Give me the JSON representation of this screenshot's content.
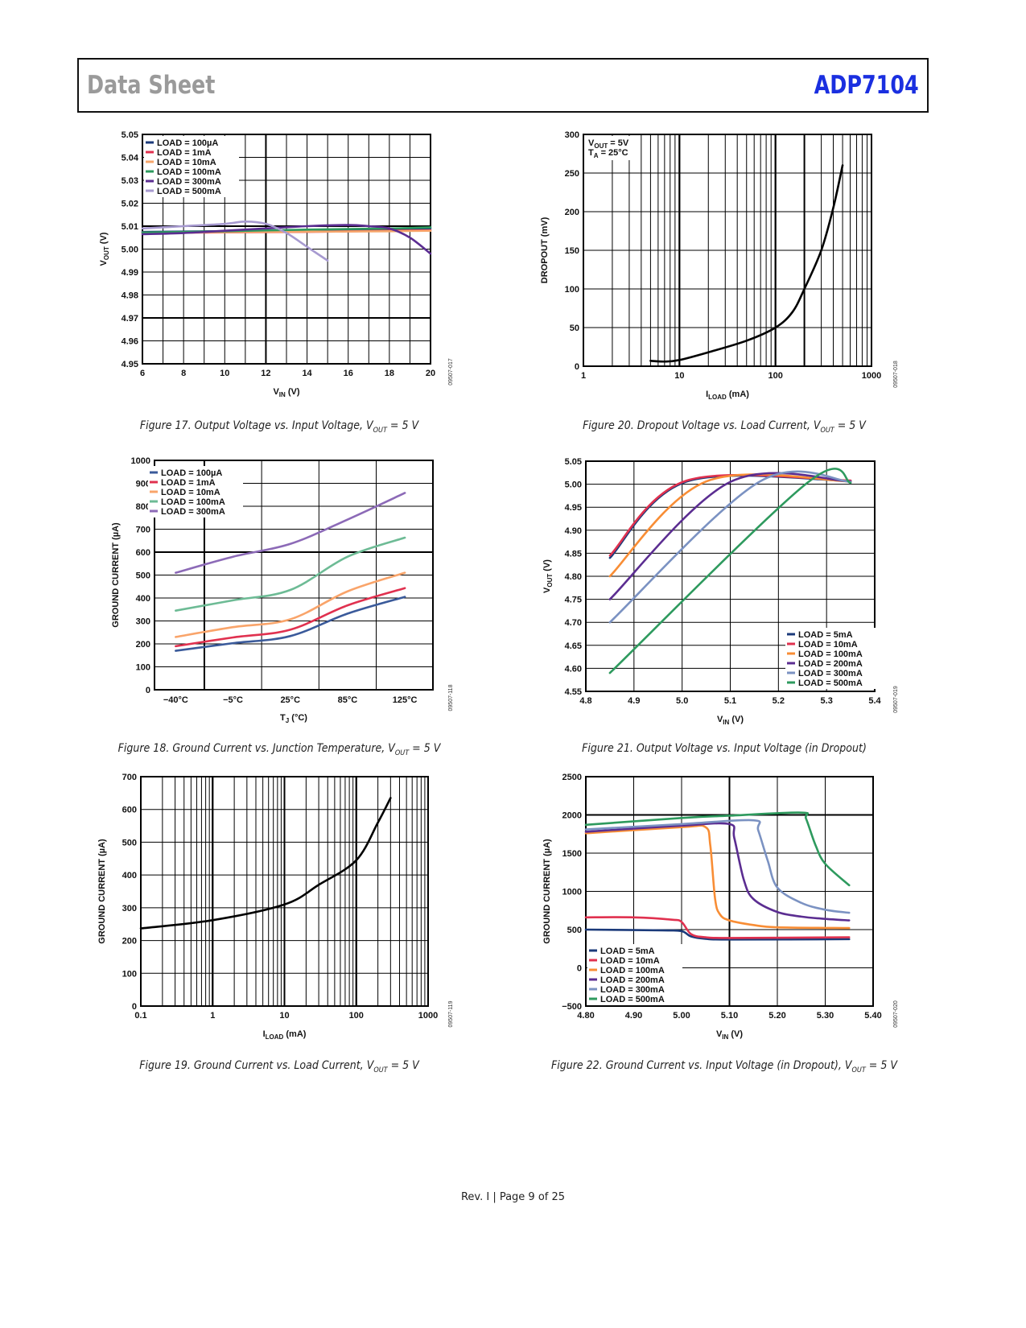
{
  "header": {
    "left": "Data Sheet",
    "right": "ADP7104"
  },
  "footer": "Rev. I | Page 9 of 25",
  "colors": {
    "brand": "#1a2fe0",
    "header_gray": "#9a9a9a"
  },
  "chart_data": [
    {
      "id": "fig17",
      "type": "line",
      "caption": {
        "pre": "Figure 17. Output Voltage vs. Input Voltage, V",
        "sub": "OUT",
        "post": " = 5 V"
      },
      "code": "09507-017",
      "xlabel": [
        "V",
        "IN",
        " (V)"
      ],
      "ylabel": [
        "V",
        "OUT",
        " (V)"
      ],
      "xscale": "linear",
      "xlim": [
        6,
        20
      ],
      "ylim": [
        4.95,
        5.05
      ],
      "xticks": [
        "6",
        "8",
        "10",
        "12",
        "14",
        "16",
        "18",
        "20"
      ],
      "yticks": [
        "4.95",
        "4.96",
        "4.97",
        "4.98",
        "4.99",
        "5.00",
        "5.01",
        "5.02",
        "5.03",
        "5.04",
        "5.05"
      ],
      "grid": true,
      "legend": "top-left",
      "series": [
        {
          "name": "LOAD = 100µA",
          "color": "#1b3a7a",
          "x": [
            6,
            10,
            14,
            18,
            20
          ],
          "y": [
            5.0075,
            5.0078,
            5.008,
            5.0085,
            5.009
          ]
        },
        {
          "name": "LOAD = 1mA",
          "color": "#e0314f",
          "x": [
            6,
            10,
            14,
            18,
            20
          ],
          "y": [
            5.007,
            5.0073,
            5.0075,
            5.008,
            5.0082
          ]
        },
        {
          "name": "LOAD = 10mA",
          "color": "#f6a66b",
          "x": [
            6,
            10,
            14,
            18,
            20
          ],
          "y": [
            5.0072,
            5.0074,
            5.0076,
            5.0078,
            5.008
          ]
        },
        {
          "name": "LOAD = 100mA",
          "color": "#2e9a5e",
          "x": [
            6,
            10,
            14,
            18,
            20
          ],
          "y": [
            5.0072,
            5.0078,
            5.0085,
            5.009,
            5.0095
          ]
        },
        {
          "name": "LOAD = 300mA",
          "color": "#5b2d91",
          "x": [
            6,
            8,
            10,
            12,
            14,
            16,
            17,
            18,
            19,
            20
          ],
          "y": [
            5.0065,
            5.007,
            5.008,
            5.009,
            5.01,
            5.0105,
            5.01,
            5.009,
            5.005,
            4.998
          ]
        },
        {
          "name": "LOAD = 500mA",
          "color": "#a79ad0",
          "x": [
            6,
            8,
            10,
            11,
            12,
            13,
            14,
            15
          ],
          "y": [
            5.009,
            5.01,
            5.011,
            5.012,
            5.011,
            5.007,
            5.001,
            4.995
          ]
        }
      ]
    },
    {
      "id": "fig20",
      "type": "line",
      "caption": {
        "pre": "Figure 20. Dropout Voltage vs. Load Current, V",
        "sub": "OUT",
        "post": " = 5 V"
      },
      "code": "09507-018",
      "xlabel": [
        "I",
        "LOAD",
        " (mA)"
      ],
      "ylabel": [
        "DROPOUT (mV)",
        "",
        ""
      ],
      "xscale": "log",
      "xlim": [
        1,
        1000
      ],
      "ylim": [
        0,
        300
      ],
      "xticks": [
        "1",
        "10",
        "100",
        "1000"
      ],
      "yticks": [
        "0",
        "50",
        "100",
        "150",
        "200",
        "250",
        "300"
      ],
      "grid": true,
      "annotation": [
        [
          "V",
          "OUT",
          " = 5V"
        ],
        [
          "T",
          "A",
          " = 25°C"
        ]
      ],
      "series": [
        {
          "name": "dropout",
          "color": "#000000",
          "x": [
            5,
            7,
            10,
            20,
            50,
            100,
            150,
            200,
            300,
            400,
            500
          ],
          "y": [
            7,
            6,
            8,
            18,
            33,
            50,
            70,
            100,
            150,
            205,
            260
          ]
        }
      ]
    },
    {
      "id": "fig18",
      "type": "line",
      "caption": {
        "pre": "Figure 18. Ground Current vs. Junction Temperature, V",
        "sub": "OUT",
        "post": " = 5 V"
      },
      "code": "09507-118",
      "xlabel": [
        "T",
        "J",
        " (°C)"
      ],
      "ylabel": [
        "GROUND CURRENT (µA)",
        "",
        ""
      ],
      "xscale": "category",
      "categories": [
        "−40°C",
        "−5°C",
        "25°C",
        "85°C",
        "125°C"
      ],
      "ylim": [
        0,
        1000
      ],
      "yticks": [
        "0",
        "100",
        "200",
        "300",
        "400",
        "500",
        "600",
        "700",
        "800",
        "900",
        "1000"
      ],
      "grid": true,
      "legend": "top-left",
      "series": [
        {
          "name": "LOAD = 100µA",
          "color": "#3a5a9a",
          "values": [
            170,
            203,
            234,
            332,
            405
          ]
        },
        {
          "name": "LOAD = 1mA",
          "color": "#e0314f",
          "values": [
            190,
            228,
            262,
            368,
            443
          ]
        },
        {
          "name": "LOAD = 10mA",
          "color": "#f9a46a",
          "values": [
            230,
            273,
            307,
            429,
            510
          ]
        },
        {
          "name": "LOAD = 100mA",
          "color": "#6dbb95",
          "values": [
            345,
            390,
            435,
            580,
            663
          ]
        },
        {
          "name": "LOAD = 300mA",
          "color": "#8c6ab7",
          "values": [
            510,
            580,
            636,
            742,
            858
          ]
        }
      ]
    },
    {
      "id": "fig21",
      "type": "line",
      "caption": {
        "pre": "Figure 21. Output Voltage vs. Input Voltage (in Dropout)",
        "sub": "",
        "post": ""
      },
      "code": "09507-019",
      "xlabel": [
        "V",
        "IN",
        " (V)"
      ],
      "ylabel": [
        "V",
        "OUT",
        " (V)"
      ],
      "xscale": "linear",
      "xlim": [
        4.8,
        5.4
      ],
      "ylim": [
        4.55,
        5.05
      ],
      "xticks": [
        "4.8",
        "4.9",
        "5.0",
        "5.1",
        "5.2",
        "5.3",
        "5.4"
      ],
      "yticks": [
        "4.55",
        "4.60",
        "4.65",
        "4.70",
        "4.75",
        "4.80",
        "4.85",
        "4.90",
        "4.95",
        "5.00",
        "5.05"
      ],
      "grid": true,
      "legend": "bottom-right",
      "series": [
        {
          "name": "LOAD = 5mA",
          "color": "#1b3a7a",
          "x": [
            4.85,
            5.01,
            5.35
          ],
          "y": [
            4.84,
            5.006,
            5.007
          ]
        },
        {
          "name": "LOAD = 10mA",
          "color": "#e0314f",
          "x": [
            4.85,
            5.01,
            5.35
          ],
          "y": [
            4.845,
            5.008,
            5.008
          ]
        },
        {
          "name": "LOAD = 100mA",
          "color": "#f88d35",
          "x": [
            4.85,
            5.05,
            5.35
          ],
          "y": [
            4.8,
            5.006,
            5.006
          ]
        },
        {
          "name": "LOAD = 200mA",
          "color": "#5b2d91",
          "x": [
            4.85,
            5.1,
            5.35
          ],
          "y": [
            4.75,
            5.005,
            5.006
          ]
        },
        {
          "name": "LOAD = 300mA",
          "color": "#7b92c2",
          "x": [
            4.85,
            5.16,
            5.35
          ],
          "y": [
            4.7,
            5.005,
            5.005
          ]
        },
        {
          "name": "LOAD = 500mA",
          "color": "#2e9a5e",
          "x": [
            4.85,
            5.26,
            5.35
          ],
          "y": [
            4.59,
            5.003,
            5.003
          ]
        }
      ]
    },
    {
      "id": "fig19",
      "type": "line",
      "caption": {
        "pre": "Figure 19. Ground Current vs. Load Current, V",
        "sub": "OUT",
        "post": " = 5 V"
      },
      "code": "09507-119",
      "xlabel": [
        "I",
        "LOAD",
        " (mA)"
      ],
      "ylabel": [
        "GROUND CURRENT (µA)",
        "",
        ""
      ],
      "xscale": "log",
      "xlim": [
        0.1,
        1000
      ],
      "ylim": [
        0,
        700
      ],
      "xticks": [
        "0.1",
        "1",
        "10",
        "100",
        "1000"
      ],
      "yticks": [
        "0",
        "100",
        "200",
        "300",
        "400",
        "500",
        "600",
        "700"
      ],
      "grid": true,
      "series": [
        {
          "name": "ground current",
          "color": "#000000",
          "x": [
            0.1,
            1,
            10,
            30,
            100,
            200,
            300
          ],
          "y": [
            237,
            262,
            310,
            370,
            445,
            560,
            635
          ]
        }
      ]
    },
    {
      "id": "fig22",
      "type": "line",
      "caption": {
        "pre": "Figure 22. Ground Current vs. Input Voltage (in Dropout), V",
        "sub": "OUT",
        "post": " = 5 V"
      },
      "code": "09507-020",
      "xlabel": [
        "V",
        "IN",
        " (V)"
      ],
      "ylabel": [
        "GROUND CURRENT (µA)",
        "",
        ""
      ],
      "xscale": "linear",
      "xlim": [
        4.8,
        5.4
      ],
      "ylim": [
        -500,
        2500
      ],
      "xticks": [
        "4.80",
        "4.90",
        "5.00",
        "5.10",
        "5.20",
        "5.30",
        "5.40"
      ],
      "yticks": [
        "−500",
        "0",
        "500",
        "1000",
        "1500",
        "2000",
        "2500"
      ],
      "grid": true,
      "legend": "bottom-left",
      "series": [
        {
          "name": "LOAD = 5mA",
          "color": "#1b3a7a",
          "x": [
            4.8,
            4.96,
            5.0,
            5.02,
            5.05,
            5.1,
            5.35
          ],
          "y": [
            500,
            490,
            480,
            410,
            380,
            370,
            375
          ]
        },
        {
          "name": "LOAD = 10mA",
          "color": "#e0314f",
          "x": [
            4.8,
            4.9,
            4.98,
            5.0,
            5.02,
            5.05,
            5.1,
            5.35
          ],
          "y": [
            660,
            660,
            630,
            600,
            440,
            400,
            390,
            400
          ]
        },
        {
          "name": "LOAD = 100mA",
          "color": "#f88d35",
          "x": [
            4.8,
            5.0,
            5.05,
            5.06,
            5.07,
            5.08,
            5.1,
            5.15,
            5.2,
            5.35
          ],
          "y": [
            1760,
            1840,
            1840,
            1600,
            900,
            700,
            620,
            560,
            530,
            520
          ]
        },
        {
          "name": "LOAD = 200mA",
          "color": "#5b2d91",
          "x": [
            4.8,
            5.0,
            5.1,
            5.11,
            5.13,
            5.15,
            5.2,
            5.25,
            5.3,
            5.35
          ],
          "y": [
            1780,
            1860,
            1880,
            1700,
            1150,
            900,
            730,
            670,
            640,
            620
          ]
        },
        {
          "name": "LOAD = 300mA",
          "color": "#7b92c2",
          "x": [
            4.8,
            5.0,
            5.15,
            5.16,
            5.18,
            5.2,
            5.25,
            5.3,
            5.35
          ],
          "y": [
            1810,
            1880,
            1930,
            1800,
            1400,
            1050,
            850,
            760,
            720
          ]
        },
        {
          "name": "LOAD = 500mA",
          "color": "#2e9a5e",
          "x": [
            4.8,
            5.0,
            5.1,
            5.25,
            5.26,
            5.28,
            5.3,
            5.35
          ],
          "y": [
            1870,
            1960,
            1990,
            2030,
            1950,
            1600,
            1360,
            1080
          ]
        }
      ]
    }
  ]
}
